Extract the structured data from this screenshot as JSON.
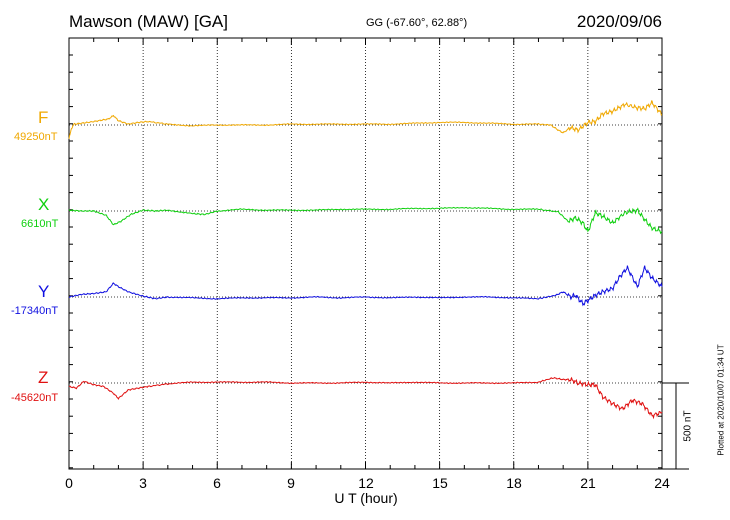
{
  "header": {
    "station": "Mawson (MAW)  [GA]",
    "coords": "GG (-67.60°,  62.88°)",
    "date": "2020/09/06"
  },
  "footer": {
    "plotted": "Plotted at 2020/10/07 01:34 UT",
    "scale": "500 nT"
  },
  "chart_data": {
    "type": "line",
    "title": "Mawson (MAW)  [GA]",
    "xlabel": "U T (hour)",
    "xlim": [
      0,
      24
    ],
    "xticks": [
      "0",
      "3",
      "6",
      "9",
      "12",
      "15",
      "18",
      "21",
      "24"
    ],
    "scale_bar_nT": 500,
    "grid": "dotted vertical every 3 h, dotted baseline per component",
    "series": [
      {
        "name": "F",
        "baseline_label": "49250nT",
        "color": "#f0a800",
        "x": [
          0,
          0.1,
          0.2,
          0.5,
          1,
          1.4,
          1.6,
          1.8,
          2,
          2.4,
          2.8,
          3.2,
          4,
          5,
          6,
          7,
          8,
          9,
          10,
          11,
          12,
          13,
          14,
          15,
          16,
          17,
          18,
          19,
          19.5,
          19.8,
          20,
          20.3,
          20.6,
          21,
          21.3,
          21.6,
          22,
          22.5,
          23,
          23.3,
          23.6,
          24
        ],
        "y": [
          -80,
          -20,
          5,
          10,
          20,
          30,
          35,
          55,
          25,
          5,
          15,
          20,
          5,
          -5,
          0,
          0,
          0,
          5,
          5,
          5,
          5,
          5,
          10,
          15,
          15,
          10,
          5,
          5,
          0,
          -30,
          -45,
          -15,
          -30,
          15,
          20,
          65,
          80,
          120,
          100,
          95,
          130,
          60
        ]
      },
      {
        "name": "X",
        "baseline_label": "6610nT",
        "color": "#10d010",
        "x": [
          0,
          0.5,
          1,
          1.5,
          1.8,
          2.1,
          2.5,
          3,
          3.5,
          4,
          5,
          5.5,
          6,
          7,
          8,
          9,
          10,
          11,
          12,
          13,
          14,
          15,
          16,
          17,
          18,
          19,
          19.8,
          20.2,
          20.5,
          20.8,
          21,
          21.3,
          21.6,
          22,
          22.5,
          23,
          23.3,
          23.6,
          24
        ],
        "y": [
          5,
          0,
          0,
          -25,
          -80,
          -60,
          -20,
          5,
          0,
          5,
          -15,
          -20,
          0,
          10,
          5,
          5,
          5,
          10,
          10,
          10,
          15,
          15,
          20,
          15,
          10,
          10,
          -5,
          -60,
          -40,
          -70,
          -120,
          -10,
          -30,
          -70,
          -10,
          5,
          -50,
          -100,
          -120
        ]
      },
      {
        "name": "Y",
        "baseline_label": "-17340nT",
        "color": "#1010e0",
        "x": [
          0,
          0.5,
          1,
          1.5,
          1.8,
          2,
          2.4,
          3,
          3.5,
          4,
          5,
          6,
          7,
          8,
          9,
          10,
          11,
          12,
          13,
          14,
          15,
          16,
          17,
          18,
          19,
          19.7,
          20,
          20.3,
          20.5,
          20.8,
          21,
          21.3,
          21.6,
          22,
          22.3,
          22.6,
          23,
          23.3,
          23.6,
          24
        ],
        "y": [
          0,
          15,
          20,
          30,
          80,
          60,
          30,
          5,
          -10,
          0,
          -5,
          -10,
          -5,
          -5,
          -5,
          0,
          -5,
          0,
          -5,
          0,
          -5,
          0,
          0,
          -5,
          -10,
          10,
          30,
          0,
          10,
          -40,
          -20,
          10,
          30,
          50,
          120,
          170,
          60,
          170,
          110,
          60
        ]
      },
      {
        "name": "Z",
        "baseline_label": "-45620nT",
        "color": "#e01010",
        "x": [
          0,
          0.3,
          0.6,
          1,
          1.4,
          1.8,
          2,
          2.4,
          2.8,
          3.2,
          4,
          5,
          6,
          7,
          8,
          9,
          10,
          11,
          12,
          13,
          14,
          15,
          16,
          17,
          18,
          19,
          19.6,
          20,
          20.3,
          20.6,
          21,
          21.3,
          21.6,
          22,
          22.4,
          22.8,
          23.2,
          23.6,
          24
        ],
        "y": [
          -20,
          -30,
          10,
          -10,
          -20,
          -60,
          -90,
          -40,
          -30,
          -20,
          -5,
          5,
          5,
          5,
          5,
          0,
          0,
          0,
          5,
          0,
          5,
          0,
          0,
          0,
          0,
          5,
          30,
          20,
          20,
          0,
          -10,
          -10,
          -80,
          -120,
          -150,
          -100,
          -120,
          -190,
          -170
        ]
      }
    ]
  }
}
